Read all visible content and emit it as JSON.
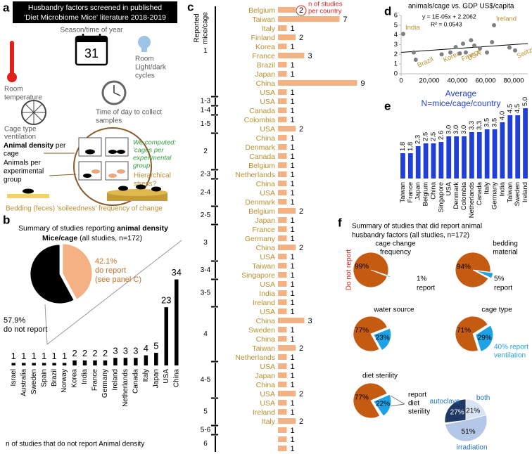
{
  "panel_labels": [
    "a",
    "b",
    "c",
    "d",
    "e",
    "f"
  ],
  "panel_a": {
    "title": [
      "Husbandry factors screened in published",
      "'Diet Microbiome Mice' literature 2018-2019"
    ],
    "season": "Season/time of year",
    "calendar_day": "31",
    "room_temperature": [
      "Room",
      "temperature"
    ],
    "light_dark": [
      "Room",
      "Light/dark",
      "cycles"
    ],
    "cage_type": [
      "Cage type",
      "ventilation"
    ],
    "time_of_day": [
      "Time of day to collect",
      "samples"
    ],
    "animal_density": [
      "Animal density",
      " per",
      "cage"
    ],
    "animals_per_group": [
      "Animals per",
      "experimental",
      "group"
    ],
    "computed": [
      "We computed:",
      "'cages per",
      "experimental",
      "group'"
    ],
    "hierarchical": [
      "Hierarchical",
      "stress?"
    ],
    "bedding": "Bedding (feces) 'soileedness' frequency of change"
  },
  "panel_f": {
    "title": [
      "Summary of studies that did report animal",
      "husbandry factors (all studies, n=172)"
    ]
  },
  "chart_data": [
    {
      "type": "pie",
      "title": [
        "Summary of studies reporting ",
        "animal density",
        "Mice/cage",
        " (all studies, n=172)"
      ],
      "categories": [
        "do report",
        "do not report"
      ],
      "values": [
        42.1,
        57.9
      ],
      "value_labels": [
        "42.1%",
        "57.9%"
      ],
      "note": [
        "(see panel C)"
      ],
      "colors": [
        "#f4b183",
        "#000000"
      ],
      "explode": [
        true,
        false
      ]
    },
    {
      "type": "bar",
      "categories": [
        "Israel",
        "Australia",
        "Sweden",
        "Spain",
        "Brazil",
        "Norway",
        "Korea",
        "India",
        "France",
        "Germany",
        "Ireland",
        "Netherlands",
        "Canada",
        "Italy",
        "Japan",
        "USA",
        "China"
      ],
      "values": [
        1,
        1,
        1,
        1,
        1,
        1,
        2,
        2,
        2,
        2,
        3,
        3,
        3,
        4,
        5,
        23,
        34
      ],
      "color": "#000000",
      "xlabel": "n of studies that do not report Animal density"
    },
    {
      "type": "hbar",
      "ylabel": [
        "Reported",
        "mice/cage"
      ],
      "annotation": [
        "n of studies",
        "per country"
      ],
      "color": "#f4b183",
      "categories": [
        "Belgium",
        "Taiwan",
        "Italy",
        "Finland",
        "Korea",
        "France",
        "Brazil",
        "Japan",
        "China",
        "USA",
        "USA",
        "Canada",
        "Colombia",
        "USA",
        "China",
        "Denmark",
        "Canada",
        "Belgium",
        "Netherlands",
        "China",
        "USA",
        "Denmark",
        "Belgium",
        "Japan",
        "France",
        "Germany",
        "China",
        "USA",
        "Taiwan",
        "Singapore",
        "USA",
        "India",
        "Ireland",
        "USA",
        "China",
        "Sweden",
        "China",
        "Taiwan",
        "Netherlands",
        "USA",
        "Japan",
        "China",
        "USA",
        "USA",
        "Ireland",
        "Italy",
        null,
        null,
        null
      ],
      "groups": [
        "1",
        "1",
        "1",
        "1",
        "1",
        "1",
        "1",
        "1",
        "1",
        "1",
        "1-3",
        "1-4",
        "1-5",
        "1-5",
        "2",
        "2",
        "2",
        "2",
        "2-3",
        "2-4",
        "2-4",
        "2-4",
        "2-5",
        "2-5",
        "3",
        "3",
        "3",
        "3",
        "3-4",
        "3-4",
        "3-5",
        "3-5",
        "3-5",
        "4",
        "4",
        "4",
        "4",
        "4",
        "4",
        "4-5",
        "4-5",
        "4-5",
        "4-5",
        "5",
        "5",
        "5",
        "5-6",
        "6",
        "6"
      ],
      "values": [
        2,
        7,
        1,
        2,
        1,
        3,
        1,
        1,
        9,
        1,
        1,
        1,
        1,
        2,
        1,
        1,
        1,
        1,
        1,
        1,
        1,
        1,
        2,
        1,
        1,
        1,
        2,
        1,
        1,
        1,
        1,
        1,
        1,
        1,
        3,
        1,
        1,
        2,
        1,
        1,
        1,
        1,
        2,
        1,
        1,
        2,
        1,
        1,
        1
      ]
    },
    {
      "type": "scatter",
      "title": "animals/cage vs. GDP US$/capita",
      "color": "#808080",
      "equation": "y = 1E-05x + 2.2062",
      "r2_label": "R² = 0.0543",
      "trendline": {
        "slope": 1e-05,
        "intercept": 2.2062
      },
      "xlim": [
        0,
        90000
      ],
      "ylim": [
        0,
        6
      ],
      "xticks": [
        0,
        {
          "value": 20000,
          "label": "20,000"
        },
        {
          "value": 40000,
          "label": "40,000"
        },
        {
          "value": 60000,
          "label": "60,000"
        },
        {
          "value": 80000,
          "label": "80,000"
        }
      ],
      "yticks": [
        0,
        1,
        2,
        3,
        4,
        5,
        6
      ],
      "x": [
        1500,
        9000,
        10400,
        28800,
        35000,
        38800,
        41700,
        44000,
        46000,
        49700,
        52000,
        56000,
        61000,
        64600,
        66000,
        77000,
        81000
      ],
      "values": [
        4.1,
        2.2,
        1.45,
        2.0,
        2.2,
        2.75,
        2.1,
        3.1,
        2.2,
        3.45,
        2.9,
        2.6,
        2.2,
        3.25,
        5.0,
        2.7,
        2.4
      ],
      "point_labels": [
        "India",
        null,
        "Brazil",
        "Korea",
        null,
        null,
        "France",
        null,
        "USA",
        null,
        null,
        null,
        null,
        null,
        "Ireland",
        null,
        "Switzerland"
      ]
    },
    {
      "type": "bar",
      "title": [
        "Average",
        "N=mice/cage/country"
      ],
      "color": "#1f3fd6",
      "categories": [
        "Taiwan",
        "France",
        "Japan",
        "Belgium",
        "China",
        "Singapore",
        "USA",
        "Denmark",
        "Colombia",
        "Netherlands",
        "Canada",
        "Italy",
        "Germany",
        "India",
        "Taiwan",
        "Sweden",
        "Ireland"
      ],
      "values": [
        1.8,
        1.8,
        2.3,
        2.5,
        2.5,
        2.6,
        3.0,
        3.0,
        3.0,
        3.3,
        3.3,
        3.5,
        3.5,
        4.0,
        4.5,
        4.5,
        5.0
      ],
      "value_labels": [
        "1.8",
        "1.8",
        "2.3",
        "2.5",
        "2.5",
        "2.6",
        "3.0",
        "3.0",
        "3.0",
        "3.3",
        "3.3",
        "3.5",
        "3.5",
        "4.0",
        "4.5",
        "4.5",
        "5.0"
      ]
    },
    {
      "type": "pie",
      "title": [
        "cage change",
        "frequency"
      ],
      "categories": [
        "Do not report",
        "report"
      ],
      "values": [
        99,
        1
      ],
      "value_labels": [
        "99%",
        "1%"
      ],
      "colors": [
        "#c55a11",
        "#1ea1e6"
      ],
      "explode": [
        false,
        true
      ]
    },
    {
      "type": "pie",
      "title": [
        "bedding",
        "material"
      ],
      "categories": [
        null,
        "report"
      ],
      "values": [
        94,
        5
      ],
      "value_labels": [
        "94%",
        "5%"
      ],
      "colors": [
        "#c55a11",
        "#1ea1e6"
      ],
      "explode": [
        false,
        true
      ]
    },
    {
      "type": "pie",
      "title": [
        "water source"
      ],
      "categories": [
        null,
        null
      ],
      "values": [
        77,
        23
      ],
      "value_labels": [
        "77%",
        "23%"
      ],
      "colors": [
        "#c55a11",
        "#1ea1e6"
      ],
      "explode": [
        false,
        true
      ]
    },
    {
      "type": "pie",
      "title": [
        "cage type"
      ],
      "categories": [
        null,
        null
      ],
      "values": [
        71,
        29
      ],
      "value_labels": [
        "71%",
        "29%"
      ],
      "note": [
        "40% report",
        "ventilation"
      ],
      "colors": [
        "#c55a11",
        "#1ea1e6"
      ],
      "explode": [
        false,
        true
      ]
    },
    {
      "type": "pie",
      "title": [
        "diet sterility"
      ],
      "categories": [
        null,
        null
      ],
      "values": [
        77,
        22
      ],
      "value_labels": [
        "77%",
        "22%"
      ],
      "note": [
        "report",
        "diet",
        "sterility"
      ],
      "colors": [
        "#c55a11",
        "#1ea1e6"
      ],
      "explode": [
        false,
        true
      ]
    },
    {
      "type": "pie",
      "categories": [
        "autoclave",
        "both",
        "irradiation"
      ],
      "values": [
        27,
        21,
        51
      ],
      "value_labels": [
        "27%",
        "21%",
        "51%"
      ],
      "colors": [
        "#203864",
        "#dae3f3",
        "#b4c7e7"
      ],
      "explode": [
        false,
        false,
        false
      ]
    }
  ]
}
